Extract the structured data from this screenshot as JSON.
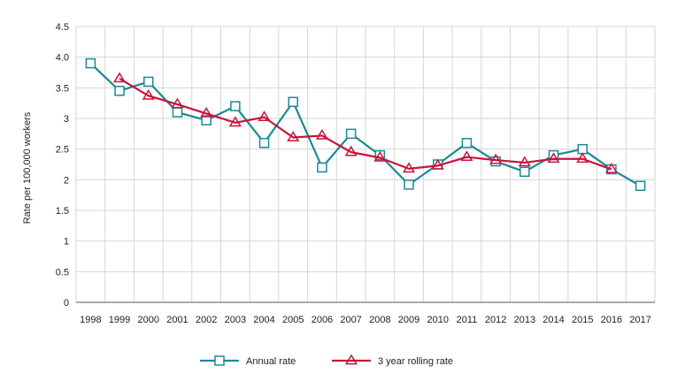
{
  "chart_data": {
    "type": "line",
    "title": "",
    "xlabel": "",
    "ylabel": "Rate per 100,000 workers",
    "ylim": [
      0,
      4.5
    ],
    "y_ticks": [
      "0",
      "0.5",
      "1",
      "1.5",
      "2",
      "2.5",
      "3",
      "3.5",
      "4.0",
      "4.5"
    ],
    "y_tick_values": [
      0,
      0.5,
      1,
      1.5,
      2,
      2.5,
      3,
      3.5,
      4.0,
      4.5
    ],
    "grid": true,
    "legend_position": "bottom",
    "x": [
      "1998",
      "1999",
      "2000",
      "2001",
      "2002",
      "2003",
      "2004",
      "2005",
      "2006",
      "2007",
      "2008",
      "2009",
      "2010",
      "2011",
      "2012",
      "2013",
      "2014",
      "2015",
      "2016",
      "2017"
    ],
    "series": [
      {
        "name": "Annual rate",
        "color": "#1a8a96",
        "marker": "square",
        "values": [
          3.9,
          3.45,
          3.6,
          3.1,
          2.97,
          3.2,
          2.6,
          3.27,
          2.2,
          2.75,
          2.4,
          1.92,
          2.25,
          2.6,
          2.3,
          2.13,
          2.4,
          2.5,
          2.17,
          1.9
        ]
      },
      {
        "name": "3 year rolling rate",
        "color": "#c8143c",
        "marker": "triangle",
        "values": [
          null,
          3.65,
          3.37,
          3.23,
          3.08,
          2.93,
          3.02,
          2.69,
          2.72,
          2.45,
          2.36,
          2.18,
          2.23,
          2.37,
          2.32,
          2.28,
          2.34,
          2.34,
          2.17,
          null
        ]
      }
    ]
  }
}
